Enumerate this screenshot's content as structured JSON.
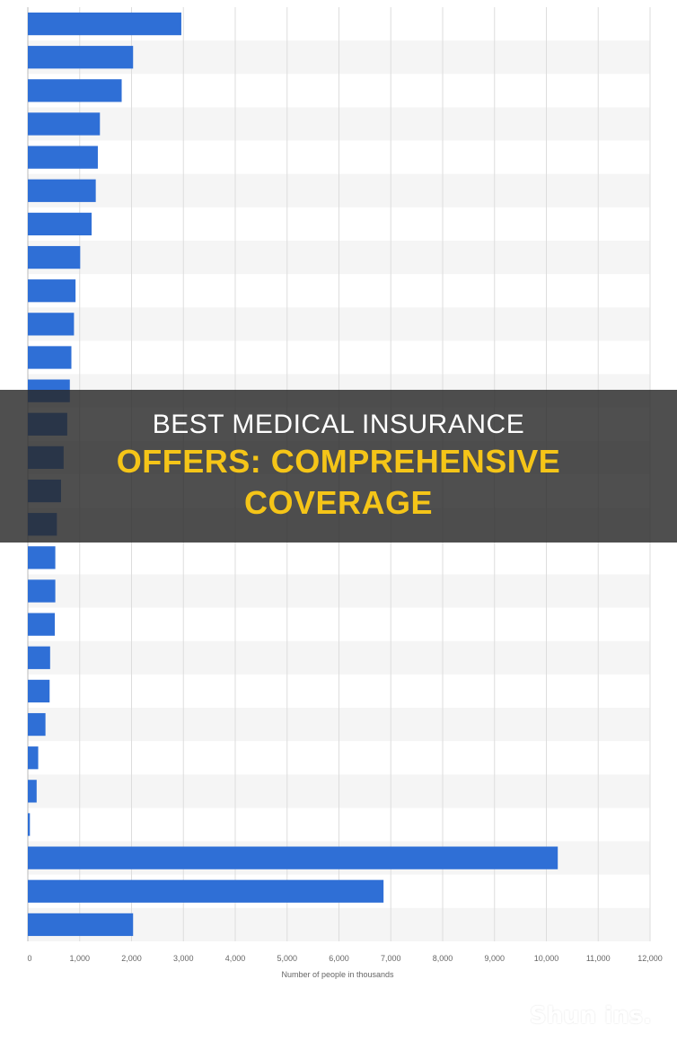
{
  "banner": {
    "line1": "BEST MEDICAL INSURANCE",
    "line2a": "OFFERS: COMPREHENSIVE",
    "line2b": "COVERAGE"
  },
  "watermark": "Shun ins.",
  "colors": {
    "bar": "#2f6fd6",
    "bar_dark": "#17356d",
    "grid": "#dddddd",
    "band": "#f5f5f5",
    "text": "#666666"
  },
  "chart_data": {
    "type": "bar",
    "orientation": "horizontal",
    "xlabel": "Number of people in thousands",
    "xlim": [
      0,
      12000
    ],
    "x_ticks": [
      "0",
      "1,000",
      "2,000",
      "3,000",
      "4,000",
      "5,000",
      "6,000",
      "7,000",
      "8,000",
      "9,000",
      "10,000",
      "11,000",
      "12,000"
    ],
    "grid": true,
    "values": [
      2960,
      2030,
      1810,
      1390,
      1350,
      1310,
      1230,
      1010,
      920,
      890,
      840,
      810,
      760,
      690,
      640,
      560,
      530,
      530,
      520,
      430,
      420,
      340,
      200,
      170,
      40,
      10220,
      6860,
      2030
    ]
  }
}
